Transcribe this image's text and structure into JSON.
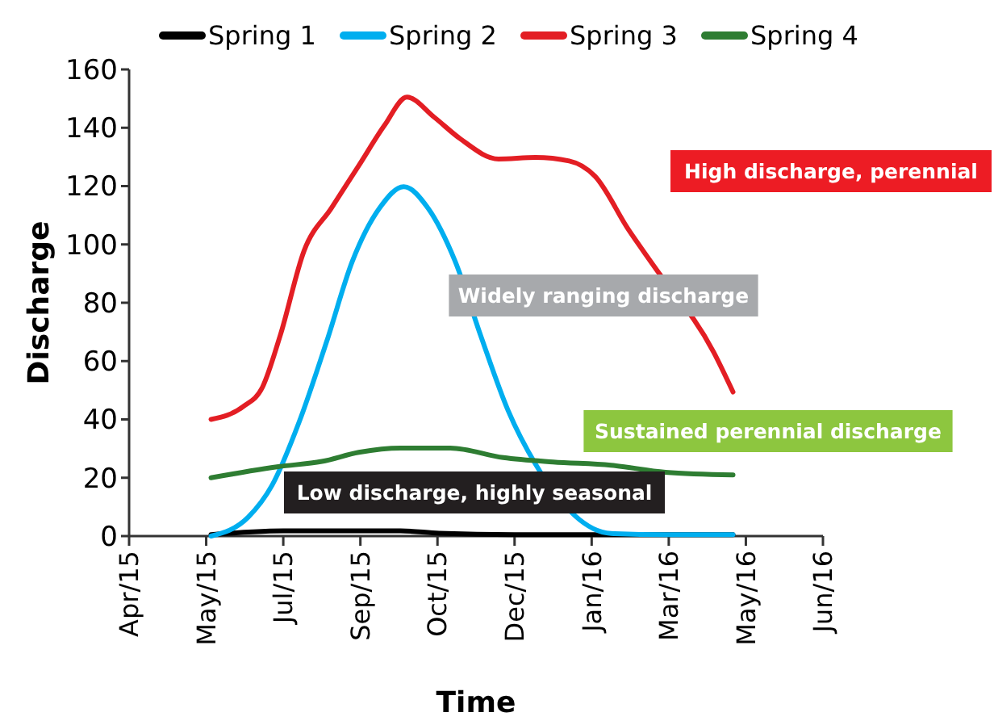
{
  "chart_data": {
    "type": "line",
    "xlabel": "Time",
    "ylabel": "Discharge",
    "x": [
      "2015-06-03",
      "2015-06-23",
      "2015-07-05",
      "2015-07-16",
      "2015-07-31",
      "2015-08-17",
      "2015-09-03",
      "2015-09-19",
      "2015-10-03",
      "2015-10-20",
      "2015-11-05",
      "2015-11-29",
      "2015-12-22",
      "2016-01-12",
      "2016-01-28",
      "2016-02-18",
      "2016-03-05",
      "2016-03-25",
      "2016-04-11",
      "2016-04-23"
    ],
    "series": [
      {
        "name": "Spring 1",
        "color": "#000000",
        "x": [
          "2015-06-03",
          "2015-07-18",
          "2015-09-29",
          "2015-10-23",
          "2015-12-09",
          "2016-04-23"
        ],
        "values": [
          0.5,
          1.8,
          1.8,
          1,
          0.5,
          0.5
        ]
      },
      {
        "name": "Spring 2",
        "color": "#00aeef",
        "x": [
          "2015-06-03",
          "2015-06-26",
          "2015-07-11",
          "2015-07-28",
          "2015-08-14",
          "2015-08-30",
          "2015-09-16",
          "2015-10-01",
          "2015-10-16",
          "2015-11-02",
          "2015-11-18",
          "2015-12-05",
          "2015-12-22",
          "2016-01-12",
          "2016-02-07",
          "2016-03-12",
          "2016-04-23"
        ],
        "values": [
          0,
          6.4,
          17.4,
          39.3,
          66.7,
          94.2,
          112.5,
          119.8,
          112.5,
          94.2,
          68.6,
          43,
          24.7,
          null,
          0.9,
          0.5,
          0.5
        ]
      },
      {
        "name": "Spring 3",
        "color": "#e31e24",
        "values": [
          40,
          44.4,
          51,
          68.6,
          97.9,
          112.5,
          127,
          140.8,
          150.5,
          143.6,
          136.3,
          129.3,
          129.8,
          128.6,
          123.4,
          105,
          92.4,
          null,
          63,
          49.4
        ]
      },
      {
        "name": "Spring 4",
        "color": "#2e7d32",
        "x": [
          "2015-06-03",
          "2015-07-15",
          "2015-08-11",
          "2015-09-03",
          "2015-09-29",
          "2015-10-30",
          "2015-12-02",
          "2016-01-02",
          "2016-02-07",
          "2016-03-12",
          "2016-04-23"
        ],
        "values": [
          20,
          23.8,
          25.6,
          28.7,
          30.2,
          30.2,
          26.9,
          25.4,
          24.3,
          21.9,
          21
        ]
      }
    ],
    "xlim": [
      "2015-04-13",
      "2016-06-18"
    ],
    "xticks": [
      {
        "value": "2015-04-13",
        "label": "Apr/15"
      },
      {
        "value": "2015-05-31",
        "label": "May/15"
      },
      {
        "value": "2015-07-18",
        "label": "Jul/15"
      },
      {
        "value": "2015-09-04",
        "label": "Sep/15"
      },
      {
        "value": "2015-10-22",
        "label": "Oct/15"
      },
      {
        "value": "2015-12-09",
        "label": "Dec/15"
      },
      {
        "value": "2016-01-26",
        "label": "Jan/16"
      },
      {
        "value": "2016-03-14",
        "label": "Mar/16"
      },
      {
        "value": "2016-05-01",
        "label": "May/16"
      },
      {
        "value": "2016-06-18",
        "label": "Jun/16"
      }
    ],
    "ylim": [
      0,
      160
    ],
    "yticks": [
      0,
      20,
      40,
      60,
      80,
      100,
      120,
      140,
      160
    ],
    "grid": false,
    "legend": "top",
    "marker": "none",
    "line_style": "solid",
    "annotations": [
      "High discharge, perennial",
      "Widely ranging discharge",
      "Sustained perennial discharge",
      "Low discharge, highly seasonal"
    ]
  }
}
